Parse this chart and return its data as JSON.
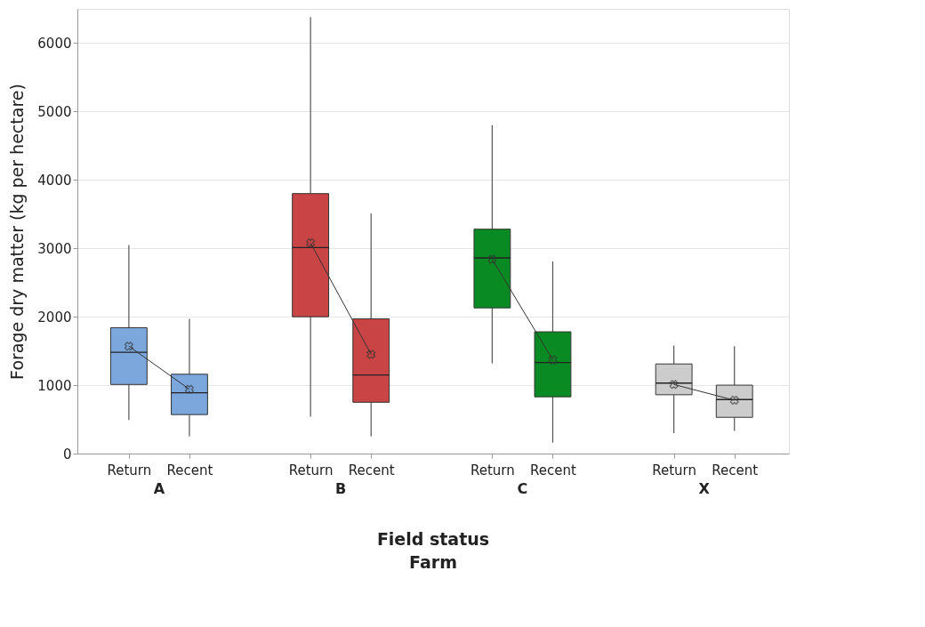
{
  "chart_data": {
    "type": "box",
    "xlabel": "Field status\nFarm",
    "ylabel": "Forage dry matter (kg per hectare)",
    "categories": [
      "Return",
      "Recent",
      null,
      "Return",
      "Recent",
      null,
      "Return",
      "Recent",
      null,
      "Return",
      "Recent"
    ],
    "annotations": [
      "A",
      "B",
      "C",
      "X"
    ],
    "ylim": [
      0,
      6500
    ],
    "yticks": [
      0,
      1000,
      2000,
      3000,
      4000,
      5000,
      6000
    ],
    "grid": "y",
    "series": [
      {
        "color": "#7ba7dc",
        "boxes": [
          {
            "low": 490,
            "q1": 1010,
            "median": 1480,
            "q3": 1840,
            "high": 3050
          },
          {
            "low": 250,
            "q1": 570,
            "median": 890,
            "q3": 1160,
            "high": 1970
          },
          null,
          null,
          null,
          null,
          null,
          null,
          null,
          null,
          null
        ]
      },
      {
        "color": "#c94444",
        "boxes": [
          null,
          null,
          null,
          {
            "low": 540,
            "q1": 2000,
            "median": 3010,
            "q3": 3800,
            "high": 6380
          },
          {
            "low": 250,
            "q1": 750,
            "median": 1150,
            "q3": 1970,
            "high": 3510
          },
          null,
          null,
          null,
          null,
          null,
          null
        ]
      },
      {
        "color": "#0a8a22",
        "boxes": [
          null,
          null,
          null,
          null,
          null,
          null,
          {
            "low": 1320,
            "q1": 2130,
            "median": 2860,
            "q3": 3280,
            "high": 4800
          },
          {
            "low": 160,
            "q1": 830,
            "median": 1330,
            "q3": 1780,
            "high": 2810
          },
          null,
          null,
          null
        ]
      },
      {
        "color": "#cccccc",
        "boxes": [
          null,
          null,
          null,
          null,
          null,
          null,
          null,
          null,
          null,
          {
            "low": 300,
            "q1": 860,
            "median": 1030,
            "q3": 1310,
            "high": 1580
          },
          {
            "low": 330,
            "q1": 530,
            "median": 790,
            "q3": 1000,
            "high": 1570
          }
        ]
      },
      {
        "type": "line",
        "color": "#333333",
        "marker": "cross",
        "values": [
          1570,
          940,
          null,
          null,
          null,
          null,
          null,
          null,
          null,
          null,
          null
        ]
      },
      {
        "type": "line",
        "color": "#333333",
        "marker": "cross",
        "values": [
          null,
          null,
          null,
          3080,
          1450,
          null,
          null,
          null,
          null,
          null,
          null
        ]
      },
      {
        "type": "line",
        "color": "#333333",
        "marker": "cross",
        "values": [
          null,
          null,
          null,
          null,
          null,
          null,
          2840,
          1370,
          null,
          null,
          null
        ]
      },
      {
        "type": "line",
        "color": "#333333",
        "marker": "cross",
        "values": [
          null,
          null,
          null,
          null,
          null,
          null,
          null,
          null,
          null,
          1010,
          780
        ]
      }
    ]
  }
}
